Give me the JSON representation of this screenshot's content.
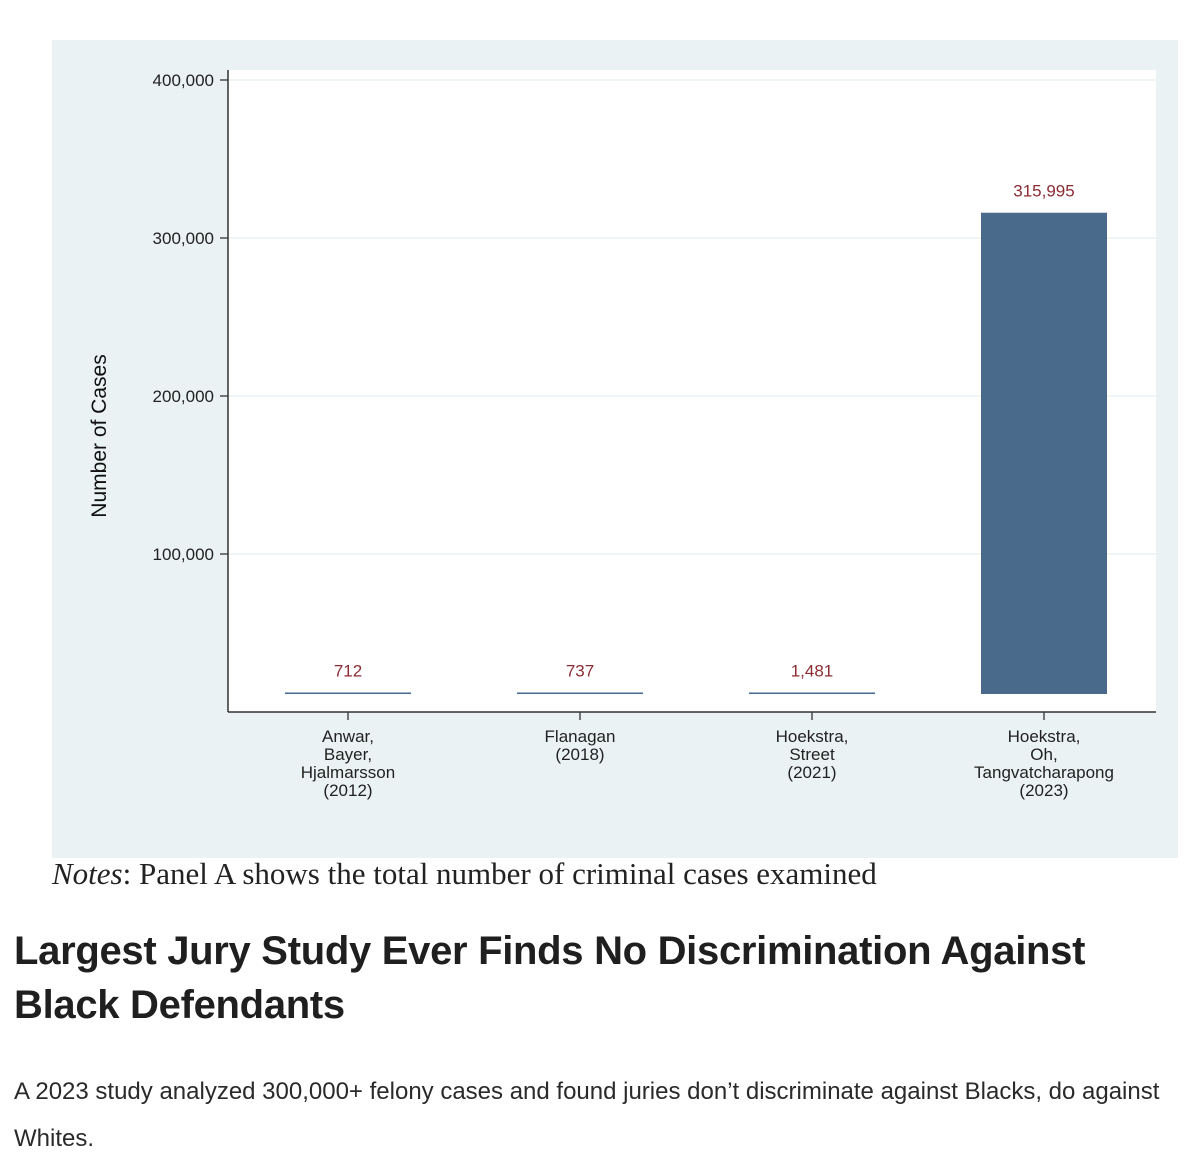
{
  "chart_data": {
    "type": "bar",
    "categories": [
      [
        "Anwar,",
        "Bayer,",
        "Hjalmarsson",
        "(2012)"
      ],
      [
        "Flanagan",
        "(2018)"
      ],
      [
        "Hoekstra,",
        "Street",
        "(2021)"
      ],
      [
        "Hoekstra,",
        "Oh,",
        "Tangvatcharapong",
        "(2023)"
      ]
    ],
    "values": [
      712,
      737,
      1481,
      315995
    ],
    "data_labels": [
      "712",
      "737",
      "1,481",
      "315,995"
    ],
    "ylabel": "Number of Cases",
    "yticks": [
      100000,
      200000,
      300000,
      400000
    ],
    "ytick_labels": [
      "100,000",
      "200,000",
      "300,000",
      "400,000"
    ],
    "ylim": [
      0,
      400000
    ],
    "grid": true,
    "bar_color": "#4a6a8c",
    "label_color": "#8b2c33",
    "background": "#eaf2f3"
  },
  "notes": {
    "prefix": "Notes",
    "text": ": Panel A shows the total number of criminal cases examined"
  },
  "article": {
    "headline": "Largest Jury Study Ever Finds No Discrimination Against Black Defendants",
    "subtitle": "A 2023 study analyzed 300,000+ felony cases and found juries don’t discriminate against Blacks, do against Whites."
  }
}
